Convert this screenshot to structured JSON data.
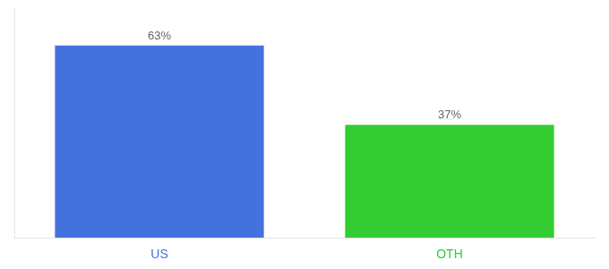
{
  "chart_data": {
    "type": "bar",
    "categories": [
      "US",
      "OTH"
    ],
    "values": [
      63,
      37
    ],
    "value_labels": [
      "63%",
      "37%"
    ],
    "colors": [
      "#4472DD",
      "#33CC33"
    ],
    "ylim": [
      0,
      75
    ],
    "data_labels": true,
    "tick_labels": "x",
    "grid": false
  }
}
